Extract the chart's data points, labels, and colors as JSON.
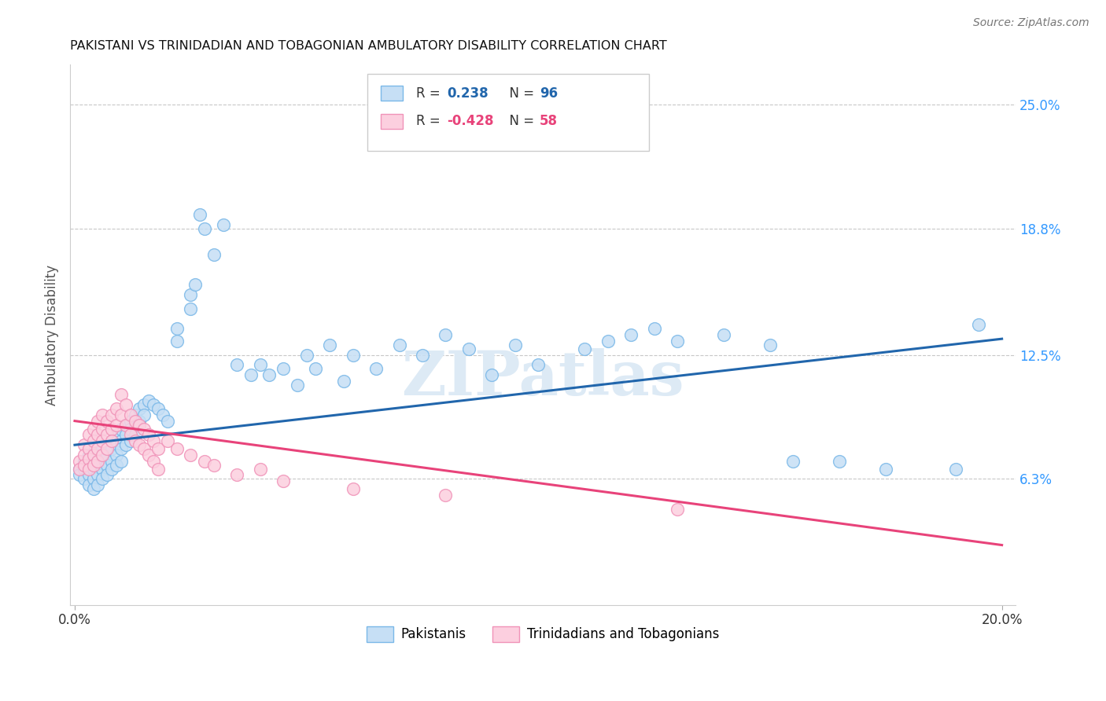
{
  "title": "PAKISTANI VS TRINIDADIAN AND TOBAGONIAN AMBULATORY DISABILITY CORRELATION CHART",
  "source": "Source: ZipAtlas.com",
  "ylabel": "Ambulatory Disability",
  "xlabel_ticks": [
    "0.0%",
    "20.0%"
  ],
  "ylabel_ticks": [
    "6.3%",
    "12.5%",
    "18.8%",
    "25.0%"
  ],
  "xmin": 0.0,
  "xmax": 0.2,
  "ymin": 0.0,
  "ymax": 0.27,
  "ytick_vals": [
    0.063,
    0.125,
    0.188,
    0.25
  ],
  "blue_line": {
    "x0": 0.0,
    "y0": 0.08,
    "x1": 0.2,
    "y1": 0.133
  },
  "pink_line": {
    "x0": 0.0,
    "y0": 0.092,
    "x1": 0.2,
    "y1": 0.03
  },
  "blue_scatter": [
    [
      0.001,
      0.068
    ],
    [
      0.001,
      0.065
    ],
    [
      0.002,
      0.072
    ],
    [
      0.002,
      0.068
    ],
    [
      0.002,
      0.063
    ],
    [
      0.003,
      0.075
    ],
    [
      0.003,
      0.07
    ],
    [
      0.003,
      0.065
    ],
    [
      0.003,
      0.06
    ],
    [
      0.004,
      0.073
    ],
    [
      0.004,
      0.068
    ],
    [
      0.004,
      0.063
    ],
    [
      0.004,
      0.058
    ],
    [
      0.005,
      0.075
    ],
    [
      0.005,
      0.07
    ],
    [
      0.005,
      0.065
    ],
    [
      0.005,
      0.06
    ],
    [
      0.006,
      0.078
    ],
    [
      0.006,
      0.072
    ],
    [
      0.006,
      0.068
    ],
    [
      0.006,
      0.063
    ],
    [
      0.007,
      0.08
    ],
    [
      0.007,
      0.075
    ],
    [
      0.007,
      0.07
    ],
    [
      0.007,
      0.065
    ],
    [
      0.008,
      0.082
    ],
    [
      0.008,
      0.078
    ],
    [
      0.008,
      0.072
    ],
    [
      0.008,
      0.068
    ],
    [
      0.009,
      0.085
    ],
    [
      0.009,
      0.08
    ],
    [
      0.009,
      0.075
    ],
    [
      0.009,
      0.07
    ],
    [
      0.01,
      0.088
    ],
    [
      0.01,
      0.082
    ],
    [
      0.01,
      0.078
    ],
    [
      0.01,
      0.072
    ],
    [
      0.011,
      0.09
    ],
    [
      0.011,
      0.085
    ],
    [
      0.011,
      0.08
    ],
    [
      0.012,
      0.092
    ],
    [
      0.012,
      0.088
    ],
    [
      0.012,
      0.082
    ],
    [
      0.013,
      0.095
    ],
    [
      0.013,
      0.09
    ],
    [
      0.013,
      0.085
    ],
    [
      0.014,
      0.098
    ],
    [
      0.014,
      0.092
    ],
    [
      0.015,
      0.1
    ],
    [
      0.015,
      0.095
    ],
    [
      0.016,
      0.102
    ],
    [
      0.017,
      0.1
    ],
    [
      0.018,
      0.098
    ],
    [
      0.019,
      0.095
    ],
    [
      0.02,
      0.092
    ],
    [
      0.022,
      0.138
    ],
    [
      0.022,
      0.132
    ],
    [
      0.025,
      0.155
    ],
    [
      0.025,
      0.148
    ],
    [
      0.026,
      0.16
    ],
    [
      0.027,
      0.195
    ],
    [
      0.028,
      0.188
    ],
    [
      0.03,
      0.175
    ],
    [
      0.032,
      0.19
    ],
    [
      0.035,
      0.12
    ],
    [
      0.038,
      0.115
    ],
    [
      0.04,
      0.12
    ],
    [
      0.042,
      0.115
    ],
    [
      0.045,
      0.118
    ],
    [
      0.048,
      0.11
    ],
    [
      0.05,
      0.125
    ],
    [
      0.052,
      0.118
    ],
    [
      0.055,
      0.13
    ],
    [
      0.058,
      0.112
    ],
    [
      0.06,
      0.125
    ],
    [
      0.065,
      0.118
    ],
    [
      0.07,
      0.13
    ],
    [
      0.075,
      0.125
    ],
    [
      0.08,
      0.135
    ],
    [
      0.085,
      0.128
    ],
    [
      0.09,
      0.115
    ],
    [
      0.095,
      0.13
    ],
    [
      0.1,
      0.12
    ],
    [
      0.11,
      0.128
    ],
    [
      0.115,
      0.132
    ],
    [
      0.12,
      0.135
    ],
    [
      0.125,
      0.138
    ],
    [
      0.13,
      0.132
    ],
    [
      0.14,
      0.135
    ],
    [
      0.15,
      0.13
    ],
    [
      0.155,
      0.072
    ],
    [
      0.165,
      0.072
    ],
    [
      0.175,
      0.068
    ],
    [
      0.19,
      0.068
    ],
    [
      0.195,
      0.14
    ]
  ],
  "pink_scatter": [
    [
      0.001,
      0.072
    ],
    [
      0.001,
      0.068
    ],
    [
      0.002,
      0.08
    ],
    [
      0.002,
      0.075
    ],
    [
      0.002,
      0.07
    ],
    [
      0.003,
      0.085
    ],
    [
      0.003,
      0.078
    ],
    [
      0.003,
      0.073
    ],
    [
      0.003,
      0.068
    ],
    [
      0.004,
      0.088
    ],
    [
      0.004,
      0.082
    ],
    [
      0.004,
      0.075
    ],
    [
      0.004,
      0.07
    ],
    [
      0.005,
      0.092
    ],
    [
      0.005,
      0.085
    ],
    [
      0.005,
      0.078
    ],
    [
      0.005,
      0.072
    ],
    [
      0.006,
      0.095
    ],
    [
      0.006,
      0.088
    ],
    [
      0.006,
      0.082
    ],
    [
      0.006,
      0.075
    ],
    [
      0.007,
      0.092
    ],
    [
      0.007,
      0.085
    ],
    [
      0.007,
      0.078
    ],
    [
      0.008,
      0.095
    ],
    [
      0.008,
      0.088
    ],
    [
      0.008,
      0.082
    ],
    [
      0.009,
      0.098
    ],
    [
      0.009,
      0.09
    ],
    [
      0.01,
      0.105
    ],
    [
      0.01,
      0.095
    ],
    [
      0.011,
      0.1
    ],
    [
      0.011,
      0.09
    ],
    [
      0.012,
      0.095
    ],
    [
      0.012,
      0.085
    ],
    [
      0.013,
      0.092
    ],
    [
      0.013,
      0.082
    ],
    [
      0.014,
      0.09
    ],
    [
      0.014,
      0.08
    ],
    [
      0.015,
      0.088
    ],
    [
      0.015,
      0.078
    ],
    [
      0.016,
      0.085
    ],
    [
      0.016,
      0.075
    ],
    [
      0.017,
      0.082
    ],
    [
      0.017,
      0.072
    ],
    [
      0.018,
      0.078
    ],
    [
      0.018,
      0.068
    ],
    [
      0.02,
      0.082
    ],
    [
      0.022,
      0.078
    ],
    [
      0.025,
      0.075
    ],
    [
      0.028,
      0.072
    ],
    [
      0.03,
      0.07
    ],
    [
      0.035,
      0.065
    ],
    [
      0.04,
      0.068
    ],
    [
      0.045,
      0.062
    ],
    [
      0.06,
      0.058
    ],
    [
      0.08,
      0.055
    ],
    [
      0.13,
      0.048
    ]
  ],
  "blue_line_color": "#2166ac",
  "pink_line_color": "#e8437a",
  "watermark": "ZIPatlas",
  "background_color": "#ffffff",
  "grid_color": "#c8c8c8"
}
